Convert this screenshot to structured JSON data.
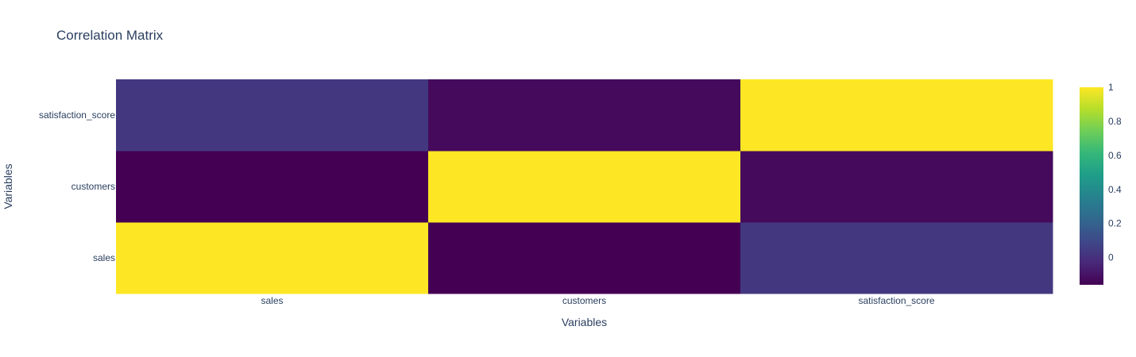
{
  "chart_data": {
    "type": "heatmap",
    "title": "Correlation Matrix",
    "xlabel": "Variables",
    "ylabel": "Variables",
    "x": [
      "sales",
      "customers",
      "satisfaction_score"
    ],
    "y": [
      "sales",
      "customers",
      "satisfaction_score"
    ],
    "z": [
      [
        1.0,
        -0.16,
        0.03
      ],
      [
        -0.16,
        1.0,
        -0.13
      ],
      [
        0.03,
        -0.13,
        1.0
      ]
    ],
    "colorscale": "Viridis",
    "zlim": [
      -0.16,
      1.0
    ],
    "colorbar": {
      "tickvals": [
        0,
        0.2,
        0.4,
        0.6,
        0.8,
        1
      ],
      "ticklabels": [
        "0",
        "0.2",
        "0.4",
        "0.6",
        "0.8",
        "1"
      ]
    },
    "grid": false,
    "legend": "right"
  }
}
